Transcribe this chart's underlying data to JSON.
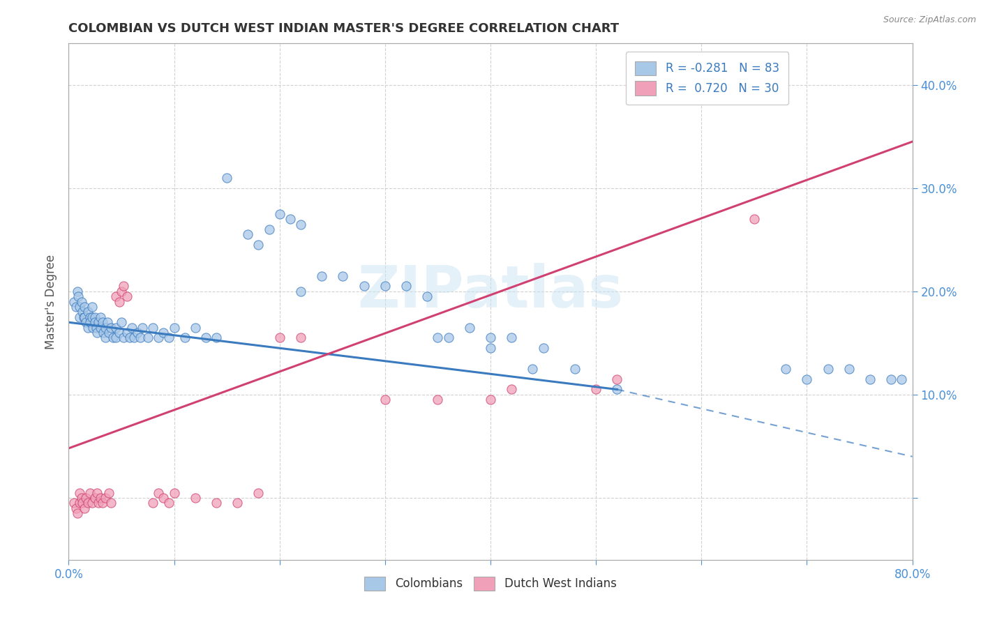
{
  "title": "COLOMBIAN VS DUTCH WEST INDIAN MASTER'S DEGREE CORRELATION CHART",
  "source_text": "Source: ZipAtlas.com",
  "ylabel_text": "Master's Degree",
  "xlim": [
    0.0,
    0.8
  ],
  "ylim": [
    -0.06,
    0.44
  ],
  "x_ticks": [
    0.0,
    0.1,
    0.2,
    0.3,
    0.4,
    0.5,
    0.6,
    0.7,
    0.8
  ],
  "y_ticks": [
    0.0,
    0.1,
    0.2,
    0.3,
    0.4
  ],
  "watermark": "ZIPatlas",
  "colombian_color": "#a8c8e8",
  "dutch_color": "#f0a0b8",
  "colombian_line_color": "#3a7abf",
  "dutch_line_color": "#d04070",
  "background_color": "#ffffff",
  "grid_color": "#cccccc",
  "colombian_scatter": [
    [
      0.005,
      0.19
    ],
    [
      0.007,
      0.185
    ],
    [
      0.008,
      0.2
    ],
    [
      0.009,
      0.195
    ],
    [
      0.01,
      0.185
    ],
    [
      0.01,
      0.175
    ],
    [
      0.012,
      0.19
    ],
    [
      0.013,
      0.18
    ],
    [
      0.014,
      0.175
    ],
    [
      0.015,
      0.185
    ],
    [
      0.015,
      0.175
    ],
    [
      0.016,
      0.17
    ],
    [
      0.018,
      0.18
    ],
    [
      0.018,
      0.165
    ],
    [
      0.02,
      0.175
    ],
    [
      0.02,
      0.17
    ],
    [
      0.022,
      0.185
    ],
    [
      0.022,
      0.175
    ],
    [
      0.023,
      0.165
    ],
    [
      0.025,
      0.175
    ],
    [
      0.025,
      0.17
    ],
    [
      0.026,
      0.165
    ],
    [
      0.027,
      0.16
    ],
    [
      0.028,
      0.17
    ],
    [
      0.03,
      0.175
    ],
    [
      0.03,
      0.165
    ],
    [
      0.032,
      0.17
    ],
    [
      0.033,
      0.16
    ],
    [
      0.035,
      0.165
    ],
    [
      0.035,
      0.155
    ],
    [
      0.037,
      0.17
    ],
    [
      0.038,
      0.16
    ],
    [
      0.04,
      0.165
    ],
    [
      0.042,
      0.155
    ],
    [
      0.045,
      0.165
    ],
    [
      0.045,
      0.155
    ],
    [
      0.048,
      0.16
    ],
    [
      0.05,
      0.17
    ],
    [
      0.052,
      0.155
    ],
    [
      0.055,
      0.16
    ],
    [
      0.058,
      0.155
    ],
    [
      0.06,
      0.165
    ],
    [
      0.062,
      0.155
    ],
    [
      0.065,
      0.16
    ],
    [
      0.068,
      0.155
    ],
    [
      0.07,
      0.165
    ],
    [
      0.075,
      0.155
    ],
    [
      0.08,
      0.165
    ],
    [
      0.085,
      0.155
    ],
    [
      0.09,
      0.16
    ],
    [
      0.095,
      0.155
    ],
    [
      0.1,
      0.165
    ],
    [
      0.11,
      0.155
    ],
    [
      0.12,
      0.165
    ],
    [
      0.13,
      0.155
    ],
    [
      0.14,
      0.155
    ],
    [
      0.15,
      0.31
    ],
    [
      0.17,
      0.255
    ],
    [
      0.18,
      0.245
    ],
    [
      0.19,
      0.26
    ],
    [
      0.2,
      0.275
    ],
    [
      0.21,
      0.27
    ],
    [
      0.22,
      0.265
    ],
    [
      0.22,
      0.2
    ],
    [
      0.24,
      0.215
    ],
    [
      0.26,
      0.215
    ],
    [
      0.28,
      0.205
    ],
    [
      0.3,
      0.205
    ],
    [
      0.32,
      0.205
    ],
    [
      0.34,
      0.195
    ],
    [
      0.36,
      0.155
    ],
    [
      0.38,
      0.165
    ],
    [
      0.4,
      0.155
    ],
    [
      0.42,
      0.155
    ],
    [
      0.44,
      0.125
    ],
    [
      0.48,
      0.125
    ],
    [
      0.52,
      0.105
    ],
    [
      0.68,
      0.125
    ],
    [
      0.7,
      0.115
    ],
    [
      0.72,
      0.125
    ],
    [
      0.74,
      0.125
    ],
    [
      0.76,
      0.115
    ],
    [
      0.78,
      0.115
    ],
    [
      0.79,
      0.115
    ],
    [
      0.35,
      0.155
    ],
    [
      0.4,
      0.145
    ],
    [
      0.45,
      0.145
    ]
  ],
  "dutch_scatter": [
    [
      0.005,
      -0.005
    ],
    [
      0.007,
      -0.01
    ],
    [
      0.008,
      -0.015
    ],
    [
      0.01,
      0.005
    ],
    [
      0.01,
      -0.005
    ],
    [
      0.012,
      0.0
    ],
    [
      0.013,
      -0.005
    ],
    [
      0.015,
      -0.01
    ],
    [
      0.016,
      0.0
    ],
    [
      0.018,
      -0.005
    ],
    [
      0.02,
      0.005
    ],
    [
      0.022,
      -0.005
    ],
    [
      0.025,
      0.0
    ],
    [
      0.027,
      0.005
    ],
    [
      0.028,
      -0.005
    ],
    [
      0.03,
      0.0
    ],
    [
      0.032,
      -0.005
    ],
    [
      0.035,
      0.0
    ],
    [
      0.038,
      0.005
    ],
    [
      0.04,
      -0.005
    ],
    [
      0.045,
      0.195
    ],
    [
      0.048,
      0.19
    ],
    [
      0.05,
      0.2
    ],
    [
      0.052,
      0.205
    ],
    [
      0.055,
      0.195
    ],
    [
      0.08,
      -0.005
    ],
    [
      0.085,
      0.005
    ],
    [
      0.09,
      0.0
    ],
    [
      0.095,
      -0.005
    ],
    [
      0.1,
      0.005
    ],
    [
      0.12,
      0.0
    ],
    [
      0.14,
      -0.005
    ],
    [
      0.16,
      -0.005
    ],
    [
      0.18,
      0.005
    ],
    [
      0.2,
      0.155
    ],
    [
      0.22,
      0.155
    ],
    [
      0.3,
      0.095
    ],
    [
      0.35,
      0.095
    ],
    [
      0.4,
      0.095
    ],
    [
      0.42,
      0.105
    ],
    [
      0.5,
      0.105
    ],
    [
      0.52,
      0.115
    ],
    [
      0.65,
      0.27
    ]
  ]
}
